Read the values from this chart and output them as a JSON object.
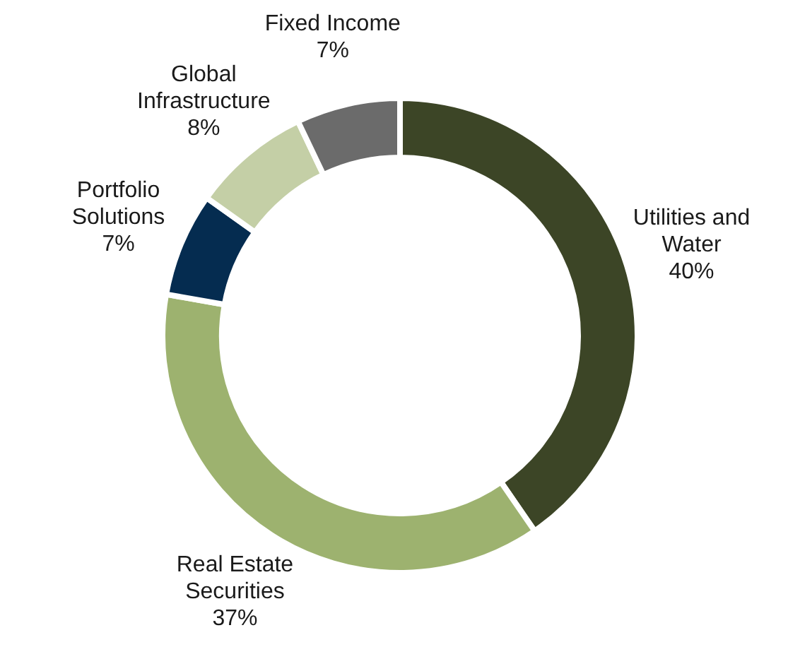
{
  "chart_data": {
    "type": "donut",
    "categories": [
      "Utilities and Water",
      "Real Estate Securities",
      "Portfolio Solutions",
      "Global Infrastructure",
      "Fixed Income"
    ],
    "values": [
      40,
      37,
      7,
      8,
      7
    ],
    "value_labels": [
      "40%",
      "37%",
      "7%",
      "8%",
      "7%"
    ],
    "colors": [
      "#3c4526",
      "#9db26f",
      "#052c50",
      "#c4cfa6",
      "#6b6b6b"
    ],
    "legend": false
  }
}
